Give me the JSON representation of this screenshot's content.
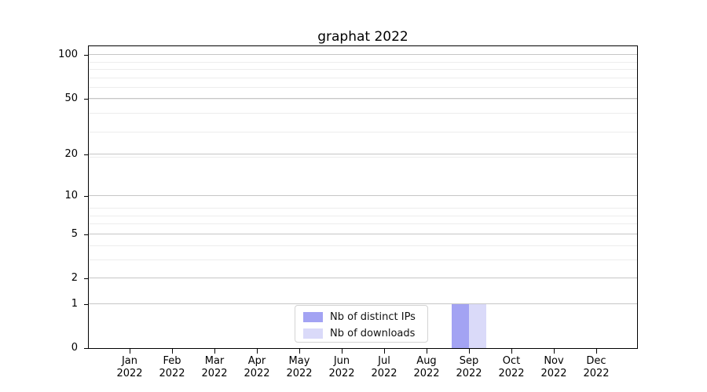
{
  "figure": {
    "background": "#ffffff"
  },
  "chart_data": {
    "type": "bar",
    "title": "graphat 2022",
    "xlabel": "",
    "ylabel": "",
    "y_scale": "log(1+y)",
    "ylim": [
      0,
      115
    ],
    "yticks": [
      0,
      1,
      2,
      5,
      10,
      20,
      50,
      100
    ],
    "minor_yticks": [
      1,
      2,
      3,
      4,
      5,
      6,
      7,
      8,
      19,
      29,
      39,
      49,
      59,
      69,
      79,
      89
    ],
    "x_tick_labels": [
      {
        "line1": "Jan",
        "line2": "2022"
      },
      {
        "line1": "Feb",
        "line2": "2022"
      },
      {
        "line1": "Mar",
        "line2": "2022"
      },
      {
        "line1": "Apr",
        "line2": "2022"
      },
      {
        "line1": "May",
        "line2": "2022"
      },
      {
        "line1": "Jun",
        "line2": "2022"
      },
      {
        "line1": "Jul",
        "line2": "2022"
      },
      {
        "line1": "Aug",
        "line2": "2022"
      },
      {
        "line1": "Sep",
        "line2": "2022"
      },
      {
        "line1": "Oct",
        "line2": "2022"
      },
      {
        "line1": "Nov",
        "line2": "2022"
      },
      {
        "line1": "Dec",
        "line2": "2022"
      }
    ],
    "series": [
      {
        "name": "Nb of distinct IPs",
        "color": "#a3a3f3",
        "values": [
          0,
          0,
          0,
          0,
          0,
          0,
          0,
          0,
          1,
          0,
          0,
          0
        ]
      },
      {
        "name": "Nb of downloads",
        "color": "#dadaf9",
        "values": [
          0,
          0,
          0,
          0,
          0,
          0,
          0,
          0,
          1,
          0,
          0,
          0
        ]
      }
    ],
    "legend": {
      "position": "inside-bottom-center"
    },
    "grid": {
      "major_color": "#c6c6c6",
      "minor_color": "#ededed"
    },
    "axis_color": "#000000",
    "text_color": "#000000"
  }
}
